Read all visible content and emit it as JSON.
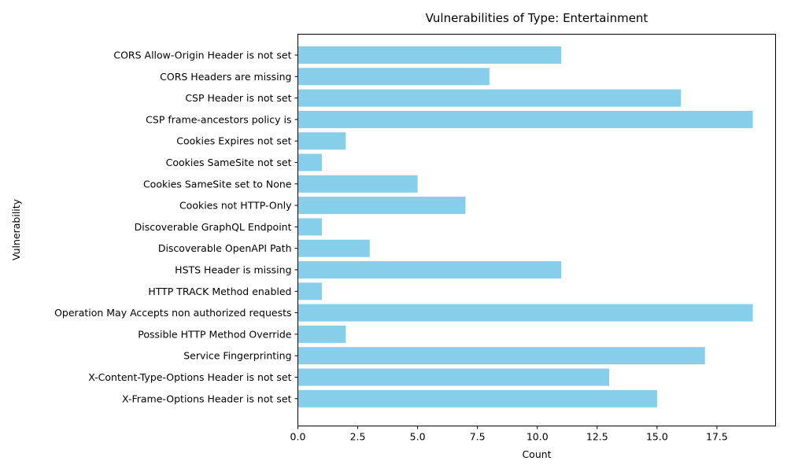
{
  "chart_data": {
    "type": "bar",
    "orientation": "horizontal",
    "title": "Vulnerabilities of Type: Entertainment",
    "xlabel": "Count",
    "ylabel": "Vulnerability",
    "categories": [
      "CORS Allow-Origin Header is not set",
      "CORS Headers are missing",
      "CSP Header is not set",
      "CSP frame-ancestors policy is",
      "Cookies Expires not set",
      "Cookies SameSite not set",
      "Cookies SameSite set to None",
      "Cookies not HTTP-Only",
      "Discoverable GraphQL Endpoint",
      "Discoverable OpenAPI Path",
      "HSTS Header is missing",
      "HTTP TRACK Method enabled",
      "Operation May Accepts non authorized requests",
      "Possible HTTP Method Override",
      "Service Fingerprinting",
      "X-Content-Type-Options Header is not set",
      "X-Frame-Options Header is not set"
    ],
    "values": [
      11,
      8,
      16,
      19,
      2,
      1,
      5,
      7,
      1,
      3,
      11,
      1,
      19,
      2,
      17,
      13,
      15
    ],
    "xlim": [
      0,
      19.95
    ],
    "xticks": [
      "0.0",
      "2.5",
      "5.0",
      "7.5",
      "10.0",
      "12.5",
      "15.0",
      "17.5"
    ],
    "xtick_values": [
      0,
      2.5,
      5,
      7.5,
      10,
      12.5,
      15,
      17.5
    ],
    "bar_color": "#87CEEB",
    "grid": false,
    "legend": "none"
  }
}
